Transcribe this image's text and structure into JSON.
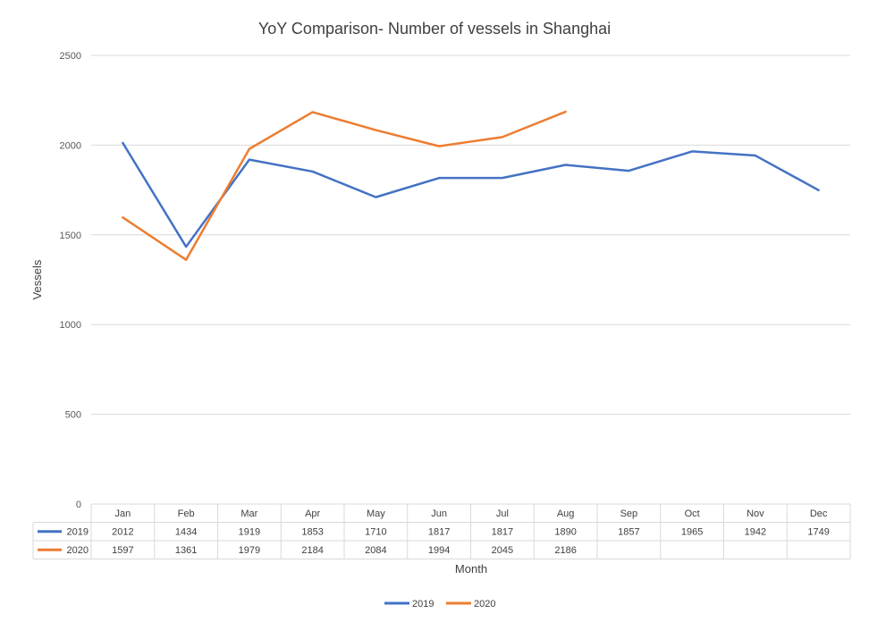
{
  "chart_data": {
    "type": "line",
    "title": "YoY Comparison- Number of vessels in Shanghai",
    "xlabel": "Month",
    "ylabel": "Vessels",
    "ylim": [
      0,
      2500
    ],
    "yticks": [
      0,
      500,
      1000,
      1500,
      2000,
      2500
    ],
    "grid": true,
    "legend_position": "bottom",
    "data_table": true,
    "categories": [
      "Jan",
      "Feb",
      "Mar",
      "Apr",
      "May",
      "Jun",
      "Jul",
      "Aug",
      "Sep",
      "Oct",
      "Nov",
      "Dec"
    ],
    "series": [
      {
        "name": "2019",
        "color": "#4472c4",
        "values": [
          2012,
          1434,
          1919,
          1853,
          1710,
          1817,
          1817,
          1890,
          1857,
          1965,
          1942,
          1749
        ]
      },
      {
        "name": "2020",
        "color": "#ed7d31",
        "values": [
          1597,
          1361,
          1979,
          2184,
          2084,
          1994,
          2045,
          2186,
          null,
          null,
          null,
          null
        ]
      }
    ]
  }
}
